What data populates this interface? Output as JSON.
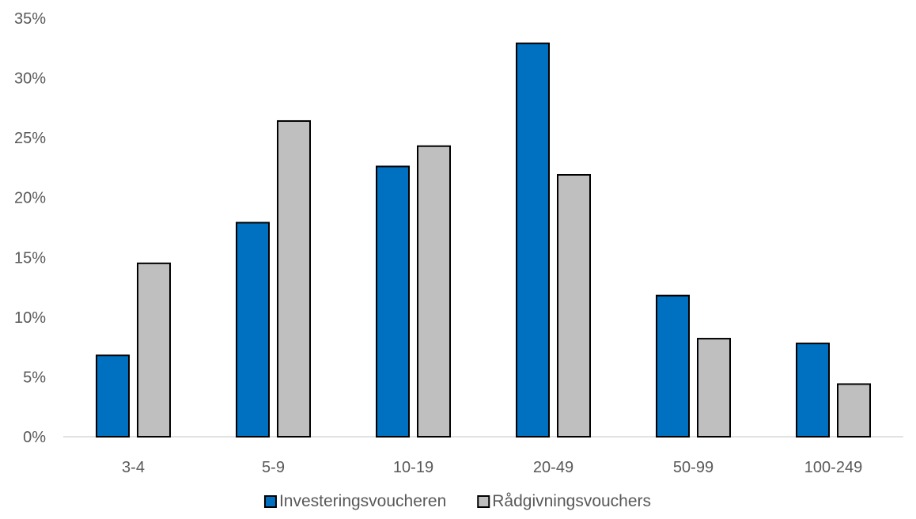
{
  "chart_data": {
    "type": "bar",
    "categories": [
      "3-4",
      "5-9",
      "10-19",
      "20-49",
      "50-99",
      "100-249"
    ],
    "series": [
      {
        "name": "Investeringsvoucheren",
        "values": [
          6.8,
          17.9,
          22.6,
          32.9,
          11.8,
          7.8
        ],
        "color": "#0070C0"
      },
      {
        "name": "Rådgivningsvouchers",
        "values": [
          14.5,
          26.4,
          24.3,
          21.9,
          8.2,
          4.4
        ],
        "color": "#BFBFBF"
      }
    ],
    "yticks": [
      "0%",
      "5%",
      "10%",
      "15%",
      "20%",
      "25%",
      "30%",
      "35%"
    ],
    "ylim": [
      0,
      35
    ],
    "ystep": 5,
    "grid": false,
    "legend_position": "bottom",
    "title": "",
    "xlabel": "",
    "ylabel": ""
  }
}
